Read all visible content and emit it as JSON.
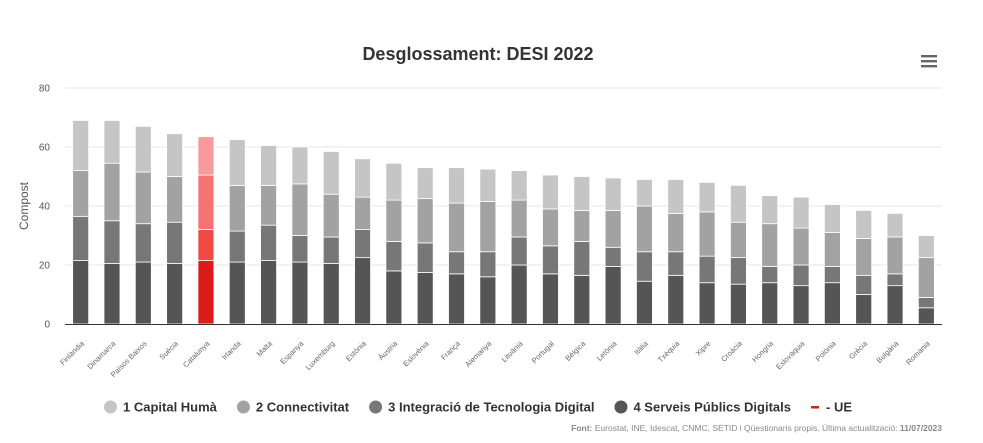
{
  "chart_data": {
    "type": "bar",
    "stacked": true,
    "title": "Desglossament: DESI 2022",
    "xlabel": "",
    "ylabel": "Compost",
    "ylim": [
      0,
      80
    ],
    "yticks": [
      0,
      20,
      40,
      60,
      80
    ],
    "grid": true,
    "legend_position": "bottom",
    "categories": [
      "Finlàndia",
      "Dinamarca",
      "Països Baixos",
      "Suècia",
      "Catalunya",
      "Irlanda",
      "Malta",
      "Espanya",
      "Luxemburg",
      "Estònia",
      "Àustria",
      "Eslovènia",
      "França",
      "Alemanya",
      "Lituània",
      "Portugal",
      "Bèlgica",
      "Letònia",
      "Itàlia",
      "Txèquia",
      "Xipre",
      "Croàcia",
      "Hongria",
      "Eslovàquia",
      "Polònia",
      "Grècia",
      "Bulgària",
      "Romania"
    ],
    "highlight_category": "Catalunya",
    "series": [
      {
        "name": "4 Serveis Públics Digitals",
        "color": "#555555",
        "highlight_color": "#dd1c1a",
        "values": [
          21.5,
          20.5,
          21,
          20.5,
          21.5,
          21,
          21.5,
          21,
          20.5,
          22.5,
          18,
          17.5,
          17,
          16,
          20,
          17,
          16.5,
          19.5,
          14.5,
          16.5,
          14,
          13.5,
          14,
          13,
          14,
          10,
          13,
          5.5
        ]
      },
      {
        "name": "3 Integració de Tecnologia Digital",
        "color": "#777777",
        "highlight_color": "#f04a42",
        "values": [
          15,
          14.5,
          13,
          14,
          10.5,
          10.5,
          12,
          9,
          9,
          9.5,
          10,
          10,
          7.5,
          8.5,
          9.5,
          9.5,
          11.5,
          6.5,
          10,
          8,
          9,
          9,
          5.5,
          7,
          5.5,
          6.5,
          4,
          3.5
        ]
      },
      {
        "name": "2 Connectivitat",
        "color": "#a2a2a2",
        "highlight_color": "#f57373",
        "values": [
          15.5,
          19.5,
          17.5,
          15.5,
          18.5,
          15.5,
          13.5,
          17.5,
          14.5,
          11,
          14,
          15,
          16.5,
          17,
          12.5,
          12.5,
          10.5,
          12.5,
          15.5,
          13,
          15,
          12,
          14.5,
          12.5,
          11.5,
          12.5,
          12.5,
          13.5
        ]
      },
      {
        "name": "1 Capital Humà",
        "color": "#c5c5c5",
        "highlight_color": "#f79a9a",
        "values": [
          17,
          14.5,
          15.5,
          14.5,
          13,
          15.5,
          13.5,
          12.5,
          14.5,
          13,
          12.5,
          10.5,
          12,
          11,
          10,
          11.5,
          11.5,
          11,
          9,
          11.5,
          10,
          12.5,
          9.5,
          10.5,
          9.5,
          9.5,
          8,
          7.5
        ]
      }
    ],
    "reference": {
      "name": "- UE",
      "color": "#dd1c1a"
    }
  },
  "legend": {
    "items": [
      {
        "label": "1 Capital Humà",
        "color": "#c5c5c5",
        "shape": "circle"
      },
      {
        "label": "2 Connectivitat",
        "color": "#a2a2a2",
        "shape": "circle"
      },
      {
        "label": "3 Integració de Tecnologia Digital",
        "color": "#777777",
        "shape": "circle"
      },
      {
        "label": "4 Serveis Públics Digitals",
        "color": "#555555",
        "shape": "circle"
      },
      {
        "label": "- UE",
        "color": "#dd1c1a",
        "shape": "dash"
      }
    ]
  },
  "menu": {
    "icon": "hamburger-menu-icon"
  },
  "source": {
    "label": "Font:",
    "text": " Eurostat, INE, Idescat, CNMC, SETID i Qüestionaris propis. Última actualització: ",
    "date": "11/07/2023"
  }
}
